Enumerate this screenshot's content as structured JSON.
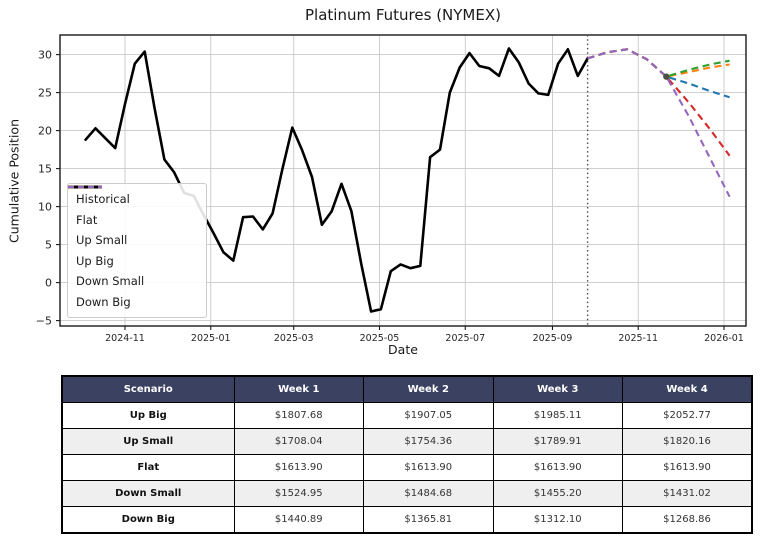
{
  "title": "Platinum Futures (NYMEX)",
  "chart_data": {
    "type": "line",
    "title": "Platinum Futures (NYMEX)",
    "xlabel": "Date",
    "ylabel": "Cumulative Position",
    "grid": true,
    "legend_position": "center-left",
    "y_ticks": [
      30,
      25,
      20,
      15,
      10,
      5,
      0,
      -5
    ],
    "ylim": [
      -6.5,
      33
    ],
    "x_tick_labels": [
      "2024-11",
      "2025-01",
      "2025-03",
      "2025-05",
      "2025-07",
      "2025-09",
      "2025-11",
      "2026-01"
    ],
    "x_tick_dates": [
      "2024-11-01",
      "2025-01-01",
      "2025-03-01",
      "2025-05-01",
      "2025-07-01",
      "2025-09-01",
      "2025-11-01",
      "2026-01-01"
    ],
    "forecast_start_date": "2025-09-26",
    "historical": {
      "name": "Historical",
      "color": "#000000",
      "style": "solid",
      "start_date": "2024-10-04",
      "interval_days": 7,
      "values": [
        18.8,
        20.3,
        19.0,
        17.7,
        23.5,
        28.8,
        30.4,
        23.0,
        16.2,
        14.5,
        11.8,
        11.4,
        8.9,
        6.5,
        4.0,
        2.9,
        8.6,
        8.7,
        7.0,
        9.1,
        15.0,
        20.4,
        17.4,
        13.9,
        7.6,
        9.4,
        13.0,
        9.4,
        2.5,
        -3.8,
        -3.5,
        1.5,
        2.4,
        1.9,
        2.2,
        16.5,
        17.5,
        25.0,
        28.3,
        30.2,
        28.5,
        28.2,
        27.2,
        30.8,
        29.0,
        26.2,
        24.9,
        24.7,
        28.8,
        30.7,
        27.2,
        29.5
      ]
    },
    "forecast_common": {
      "dates": [
        "2025-09-26",
        "2025-10-10",
        "2025-10-24",
        "2025-11-07",
        "2025-11-21"
      ],
      "values": [
        29.5,
        30.3,
        30.7,
        29.4,
        27.1
      ]
    },
    "forecast_branch_dates": [
      "2025-12-07",
      "2025-12-22",
      "2026-01-05"
    ],
    "scenarios": [
      {
        "name": "Flat",
        "color": "#1f77b4",
        "style": "dashed",
        "values": [
          26.2,
          25.2,
          24.4
        ]
      },
      {
        "name": "Up Small",
        "color": "#ff7f0e",
        "style": "dashed",
        "values": [
          27.7,
          28.3,
          28.7
        ]
      },
      {
        "name": "Up Big",
        "color": "#2ca02c",
        "style": "dashed",
        "values": [
          28.0,
          28.7,
          29.2
        ]
      },
      {
        "name": "Down Small",
        "color": "#d62728",
        "style": "dashed",
        "values": [
          23.7,
          20.2,
          16.7
        ]
      },
      {
        "name": "Down Big",
        "color": "#9467bd",
        "style": "dashed",
        "values": [
          21.9,
          16.4,
          11.3
        ]
      }
    ],
    "legend_order": [
      "Historical",
      "Flat",
      "Up Small",
      "Up Big",
      "Down Small",
      "Down Big"
    ]
  },
  "table": {
    "columns": [
      "Scenario",
      "Week 1",
      "Week 2",
      "Week 3",
      "Week 4"
    ],
    "rows": [
      {
        "scenario": "Up Big",
        "values": [
          "$1807.68",
          "$1907.05",
          "$1985.11",
          "$2052.77"
        ]
      },
      {
        "scenario": "Up Small",
        "values": [
          "$1708.04",
          "$1754.36",
          "$1789.91",
          "$1820.16"
        ]
      },
      {
        "scenario": "Flat",
        "values": [
          "$1613.90",
          "$1613.90",
          "$1613.90",
          "$1613.90"
        ]
      },
      {
        "scenario": "Down Small",
        "values": [
          "$1524.95",
          "$1484.68",
          "$1455.20",
          "$1431.02"
        ]
      },
      {
        "scenario": "Down Big",
        "values": [
          "$1440.89",
          "$1365.81",
          "$1312.10",
          "$1268.86"
        ]
      }
    ],
    "header_bg": "#3a4161",
    "header_text_color": "#ffffff",
    "row_alt_bg": "#efefef"
  }
}
